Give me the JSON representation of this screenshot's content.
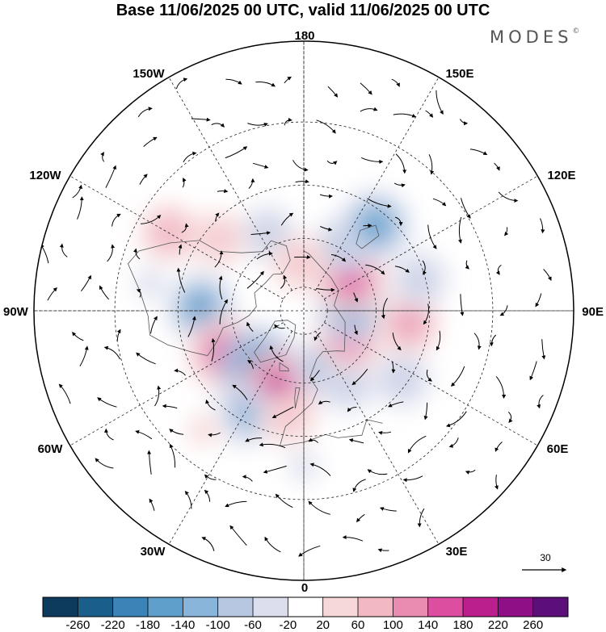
{
  "title": "Base 11/06/2025 00 UTC, valid 11/06/2025 00 UTC",
  "brand": "MODES",
  "brand_mark": "©",
  "longitude_labels": {
    "top": "180",
    "bottom": "0",
    "left": "90W",
    "right": "90E",
    "upper_left_inner": "150W",
    "upper_left_outer": "120W",
    "upper_right_inner": "150E",
    "upper_right_outer": "120E",
    "lower_left_outer": "60W",
    "lower_left_inner": "30W",
    "lower_right_outer": "60E",
    "lower_right_inner": "30E"
  },
  "reference_vector": {
    "label": "30"
  },
  "colorbar": {
    "ticks": [
      "-260",
      "-220",
      "-180",
      "-140",
      "-100",
      "-60",
      "-20",
      "20",
      "60",
      "100",
      "140",
      "180",
      "220",
      "260"
    ],
    "colors": [
      "#0d3b5e",
      "#1a5f8c",
      "#3a84b8",
      "#5f9fcb",
      "#8ab5da",
      "#b7c7e2",
      "#dcdeed",
      "#ffffff",
      "#f7d8d8",
      "#f2b8c4",
      "#ea8cb2",
      "#dc4fa0",
      "#bb1f8e",
      "#8e0f86",
      "#5c0f7a"
    ]
  },
  "anomaly_centers": [
    {
      "lon": -92,
      "lat": 48,
      "value": -150
    },
    {
      "lon": -62,
      "lat": 53,
      "value": 170
    },
    {
      "lon": -40,
      "lat": 60,
      "value": -190
    },
    {
      "lon": -18,
      "lat": 56,
      "value": 185
    },
    {
      "lon": -30,
      "lat": 42,
      "value": -110
    },
    {
      "lon": -8,
      "lat": 46,
      "value": 70
    },
    {
      "lon": 20,
      "lat": 65,
      "value": -110
    },
    {
      "lon": 30,
      "lat": 55,
      "value": -80
    },
    {
      "lon": 62,
      "lat": 68,
      "value": 160
    },
    {
      "lon": 95,
      "lat": 70,
      "value": -170
    },
    {
      "lon": 83,
      "lat": 47,
      "value": 110
    },
    {
      "lon": 125,
      "lat": 66,
      "value": 170
    },
    {
      "lon": 148,
      "lat": 58,
      "value": -90
    },
    {
      "lon": 140,
      "lat": 45,
      "value": -160
    },
    {
      "lon": 105,
      "lat": 42,
      "value": -80
    },
    {
      "lon": 55,
      "lat": 42,
      "value": -80
    },
    {
      "lon": -155,
      "lat": 55,
      "value": -80
    },
    {
      "lon": -130,
      "lat": 45,
      "value": 70
    },
    {
      "lon": -120,
      "lat": 30,
      "value": 90
    },
    {
      "lon": -175,
      "lat": 70,
      "value": 80
    },
    {
      "lon": -100,
      "lat": 30,
      "value": -40
    },
    {
      "lon": 0,
      "lat": 30,
      "value": -30
    },
    {
      "lon": -40,
      "lat": 30,
      "value": 40
    }
  ]
}
